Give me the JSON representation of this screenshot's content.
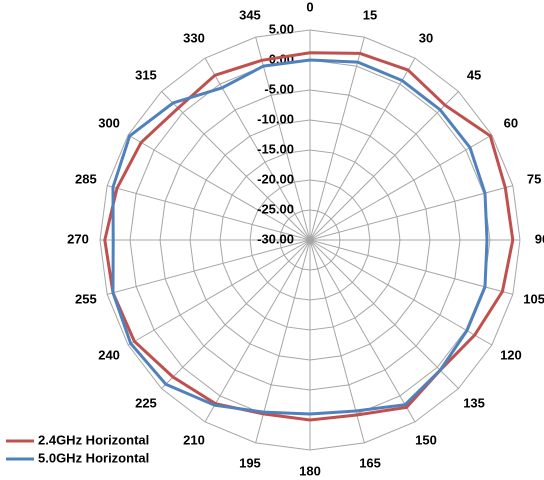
{
  "chart_data": {
    "type": "radar",
    "categories": [
      "0",
      "15",
      "30",
      "45",
      "60",
      "75",
      "90",
      "105",
      "120",
      "135",
      "150",
      "165",
      "180",
      "195",
      "210",
      "225",
      "240",
      "255",
      "270",
      "285",
      "300",
      "315",
      "330",
      "345"
    ],
    "rlim": [
      -30,
      5
    ],
    "rticks": [
      {
        "value": -30,
        "label": "-30.00"
      },
      {
        "value": -25,
        "label": "-25.00"
      },
      {
        "value": -20,
        "label": "-20.00"
      },
      {
        "value": -15,
        "label": "-15.00"
      },
      {
        "value": -10,
        "label": "-10.00"
      },
      {
        "value": -5,
        "label": "-5.00"
      },
      {
        "value": 0,
        "label": "0.00"
      },
      {
        "value": 5,
        "label": "5.00"
      }
    ],
    "grid": true,
    "legend": "bottom-left",
    "series": [
      {
        "name": "2.4GHz Horizontal",
        "color": "#c0504d",
        "values": [
          1.2,
          2.2,
          2.7,
          1.8,
          4.7,
          3.7,
          3.8,
          3.2,
          1.7,
          0.7,
          2.2,
          0.2,
          0,
          0,
          1.5,
          2.3,
          3.8,
          4,
          4.2,
          3.3,
          2.5,
          1.1,
          1.7,
          1
        ]
      },
      {
        "name": "5.0GHz Horizontal",
        "color": "#4f81bd",
        "values": [
          0,
          0.7,
          0.7,
          0.7,
          0.8,
          0.2,
          -0.5,
          0.2,
          0.2,
          0.7,
          1.7,
          -0.5,
          -1,
          -0.3,
          1.8,
          4,
          4.5,
          4,
          2.8,
          4,
          4.7,
          2.3,
          -0.7,
          0
        ]
      }
    ]
  }
}
